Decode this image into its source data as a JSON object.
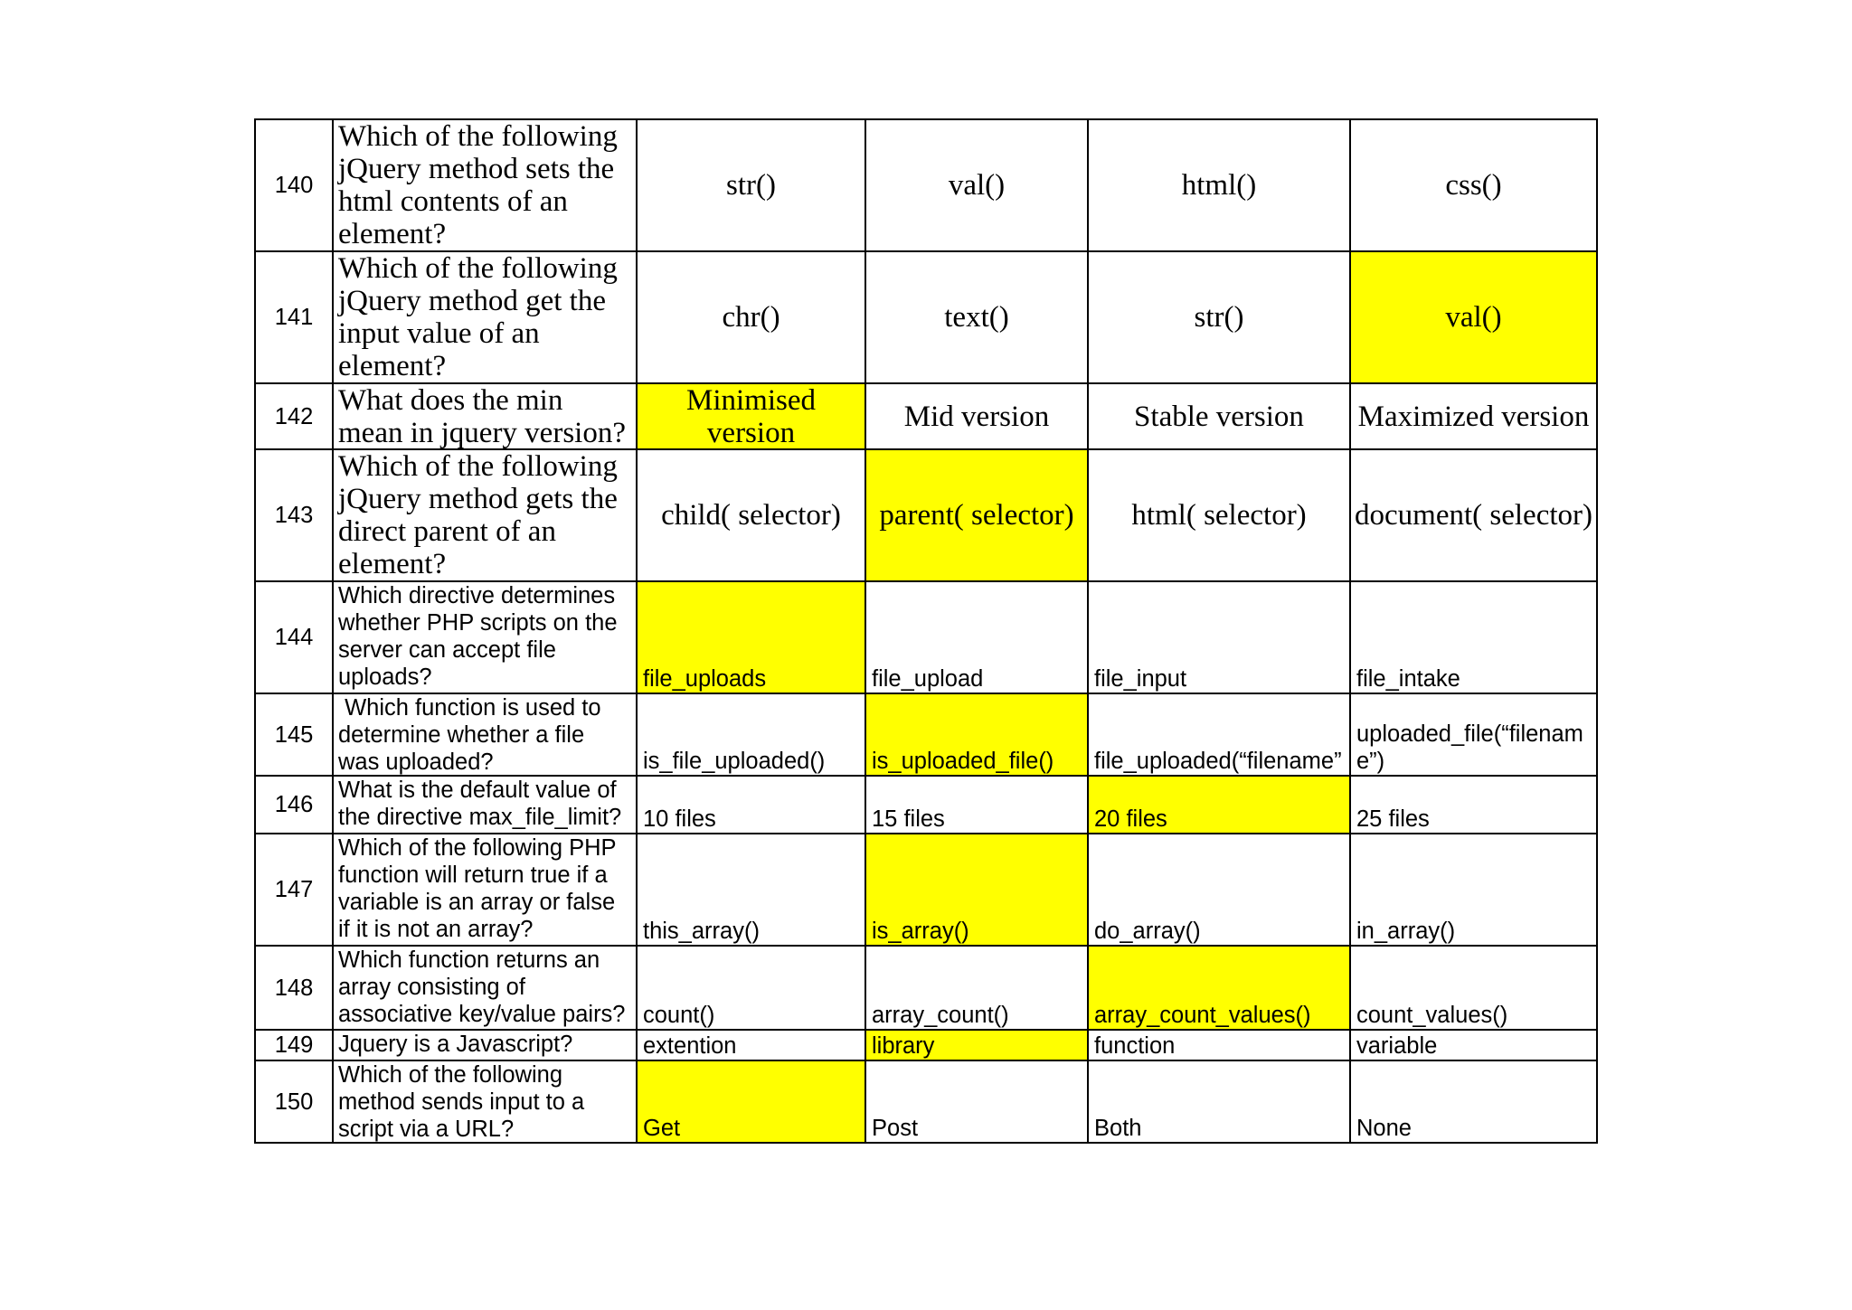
{
  "highlight_color": "#ffff00",
  "rows": [
    {
      "number": "140",
      "question": "Which of the following jQuery method sets the html contents of an element?",
      "options": [
        "str()",
        "val()",
        "html()",
        "css()"
      ],
      "highlighted_option": null
    },
    {
      "number": "141",
      "question": "Which of the following jQuery method get the input value of an element?",
      "options": [
        "chr()",
        "text()",
        "str()",
        "val()"
      ],
      "highlighted_option": 3
    },
    {
      "number": "142",
      "question": "What does the min mean in jquery version?",
      "options": [
        "Minimised version",
        "Mid version",
        "Stable version",
        "Maximized version"
      ],
      "highlighted_option": 0
    },
    {
      "number": "143",
      "question": "Which of the following jQuery method gets the direct parent of an element?",
      "options": [
        "child( selector)",
        "parent( selector)",
        "html( selector)",
        "document( selector)"
      ],
      "highlighted_option": 1
    },
    {
      "number": "144",
      "question": "Which directive determines whether PHP scripts on the server can accept file uploads?",
      "options": [
        "file_uploads",
        "file_upload",
        "file_input",
        "file_intake"
      ],
      "highlighted_option": 0
    },
    {
      "number": "145",
      "question": " Which function is used to determine whether a file was uploaded?",
      "options": [
        "is_file_uploaded()",
        "is_uploaded_file()",
        "file_uploaded(“filename”",
        "uploaded_file(“filename”)"
      ],
      "highlighted_option": 1
    },
    {
      "number": "146",
      "question": "What is the default value of the directive max_file_limit?",
      "options": [
        "10 files",
        "15 files",
        "20 files",
        "25 files"
      ],
      "highlighted_option": 2
    },
    {
      "number": "147",
      "question": "Which of the following PHP function will return true if a variable is an array or false if it is not an array?",
      "options": [
        "this_array()",
        "is_array()",
        "do_array()",
        "in_array()"
      ],
      "highlighted_option": 1
    },
    {
      "number": "148",
      "question": "Which function returns an array consisting of associative key/value pairs?",
      "options": [
        "count()",
        "array_count()",
        "array_count_values()",
        "count_values()"
      ],
      "highlighted_option": 2
    },
    {
      "number": "149",
      "question": "Jquery is a Javascript?",
      "options": [
        "extention",
        "library",
        "function",
        "variable"
      ],
      "highlighted_option": 1
    },
    {
      "number": "150",
      "question": "Which of the following method sends input to a script via a URL?",
      "options": [
        "Get",
        "Post",
        "Both",
        "None"
      ],
      "highlighted_option": 0
    }
  ]
}
